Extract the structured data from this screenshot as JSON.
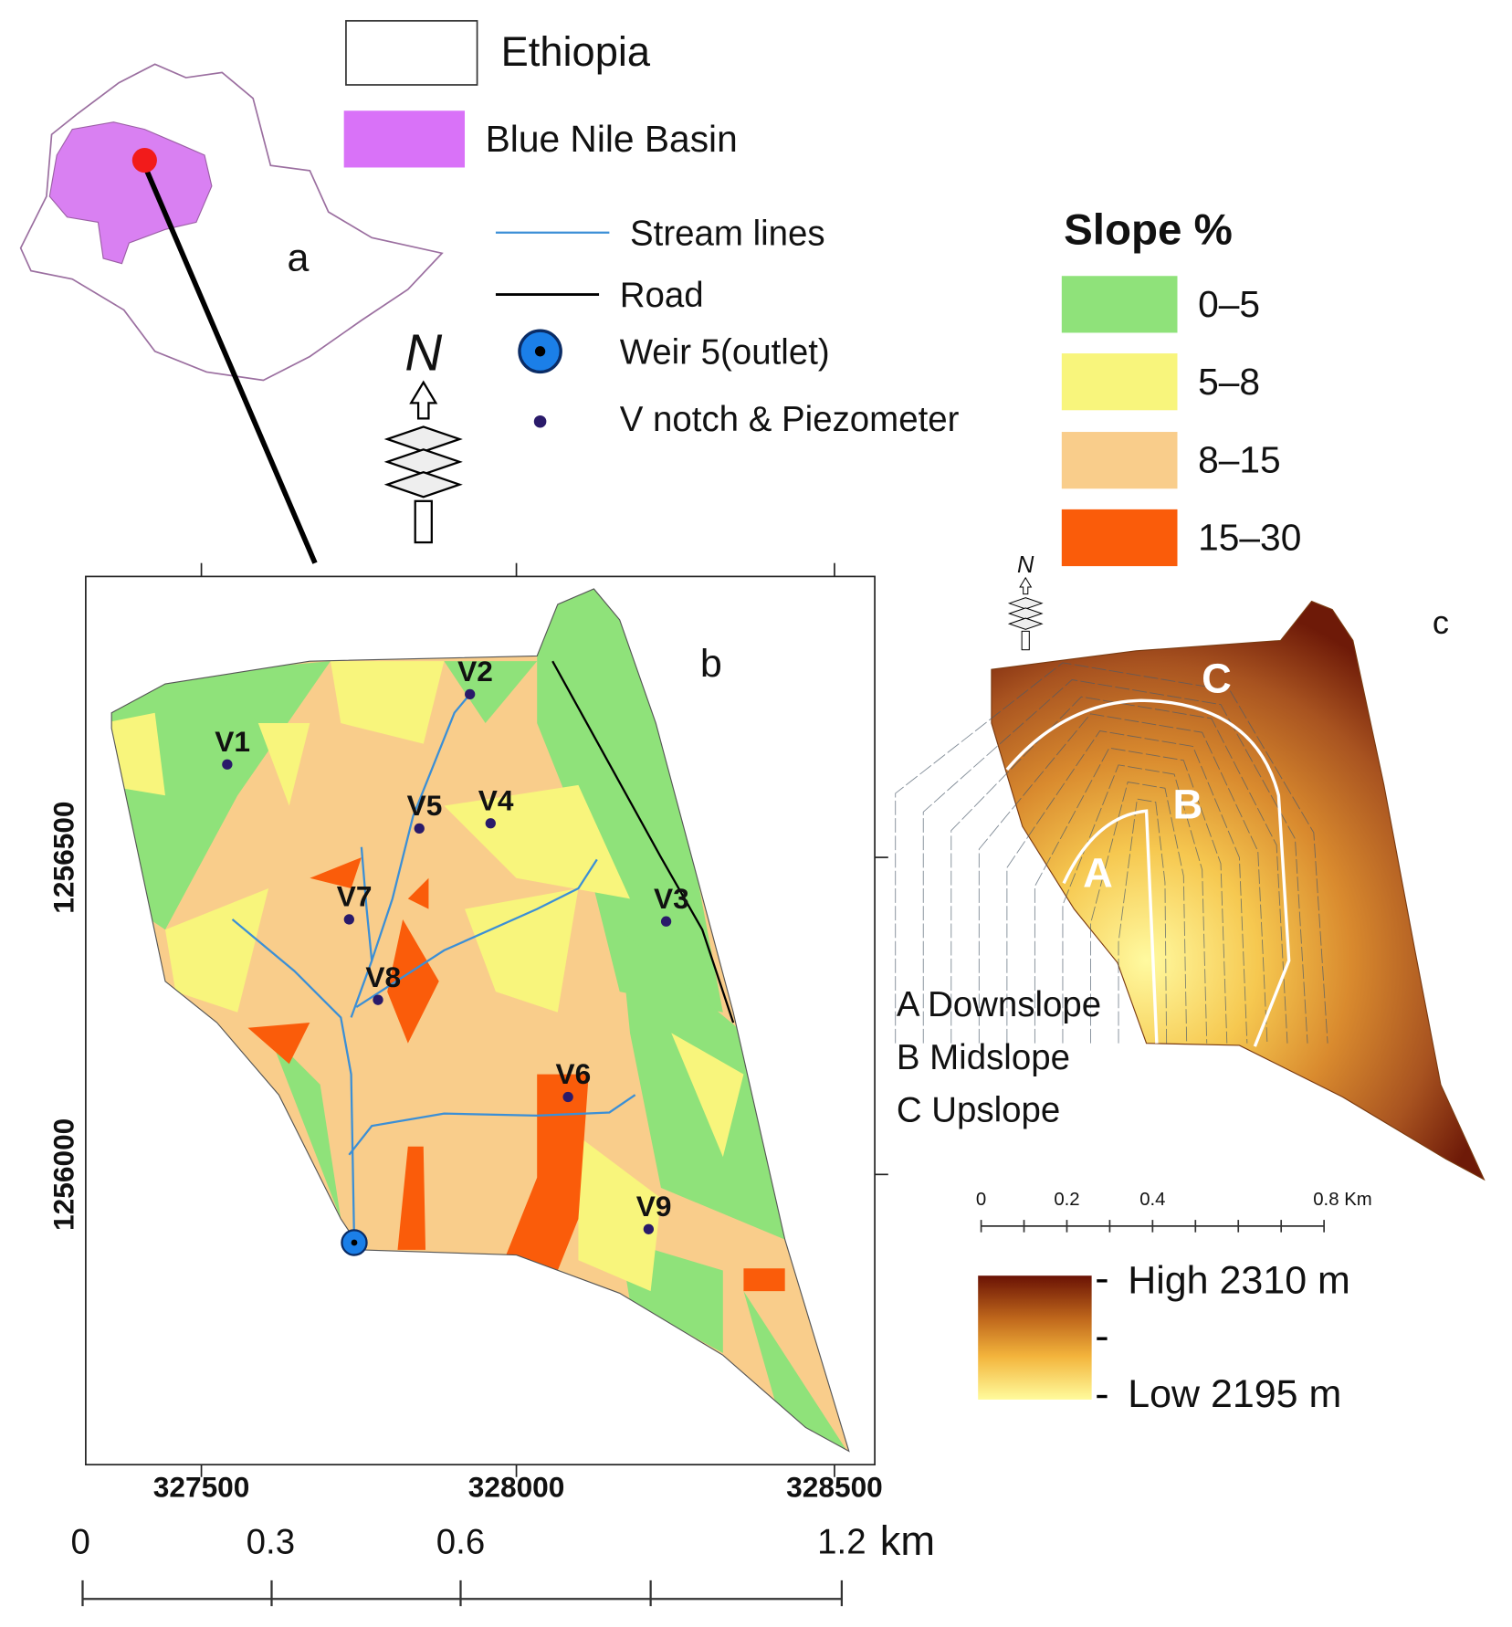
{
  "legend": {
    "ethiopia": "Ethiopia",
    "blue_nile": "Blue Nile Basin",
    "stream": "Stream lines",
    "road": "Road",
    "weir": "Weir  5(outlet)",
    "vnotch": "V notch & Piezometer"
  },
  "panel_labels": [
    "a",
    "b",
    "c"
  ],
  "north": [
    "N",
    "N"
  ],
  "slope_legend": {
    "title": "Slope %",
    "classes": [
      {
        "label": "0–5",
        "color": "#8fe27a"
      },
      {
        "label": "5–8",
        "color": "#f8f57c"
      },
      {
        "label": "8–15",
        "color": "#f9cd8b"
      },
      {
        "label": "15–30",
        "color": "#fa5c0a"
      }
    ]
  },
  "map_b": {
    "x_ticks": [
      "327500",
      "328000",
      "328500"
    ],
    "y_ticks": [
      "1256500",
      "1256000"
    ],
    "stations": [
      "V1",
      "V2",
      "V3",
      "V4",
      "V5",
      "V6",
      "V7",
      "V8",
      "V9"
    ]
  },
  "scale_b": {
    "ticks": [
      "0",
      "0.3",
      "0.6",
      "1.2"
    ],
    "unit": "km"
  },
  "zones": {
    "labels": [
      "A",
      "B",
      "C"
    ],
    "legend": [
      "A  Downslope",
      "B  Midslope",
      "C  Upslope"
    ]
  },
  "scale_c": {
    "ticks": [
      "0",
      "0.2",
      "0.4",
      "0.8 Km"
    ]
  },
  "elevation": {
    "high": "High 2310 m",
    "low": "Low  2195 m"
  }
}
